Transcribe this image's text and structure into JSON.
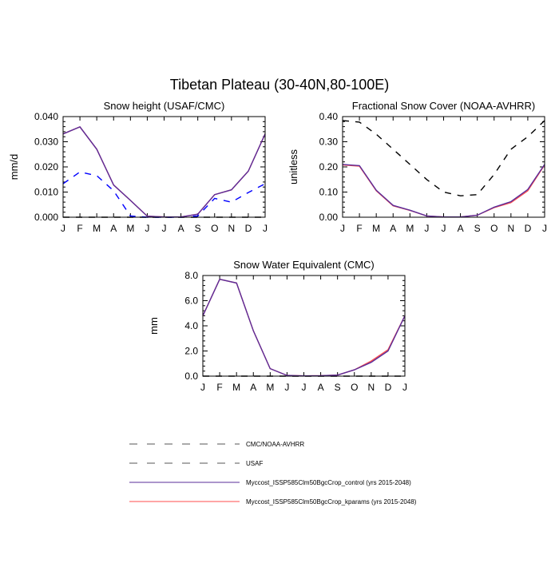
{
  "figure": {
    "title": "Tibetan Plateau (30-40N,80-100E)"
  },
  "months": [
    "J",
    "F",
    "M",
    "A",
    "M",
    "J",
    "J",
    "A",
    "S",
    "O",
    "N",
    "D",
    "J"
  ],
  "colors": {
    "obs1": "#000000",
    "obs2": "#0000ff",
    "control": "#5a2d9a",
    "kparams": "#ff4d4d"
  },
  "legend": [
    {
      "label": "CMC/NOAA-AVHRR",
      "color": "#000000",
      "dash": "8,8"
    },
    {
      "label": "USAF",
      "color": "#0000ff",
      "dash": "8,8"
    },
    {
      "label": "Myccost_ISSP585Clm50BgcCrop_control (yrs 2015-2048)",
      "color": "#5a2d9a",
      "dash": ""
    },
    {
      "label": "Myccost_ISSP585Clm50BgcCrop_kparams (yrs 2015-2048)",
      "color": "#ff4d4d",
      "dash": ""
    }
  ],
  "chart_data": [
    {
      "id": "snow_height",
      "type": "line",
      "title": "Snow height (USAF/CMC)",
      "xlabel": "",
      "ylabel": "mm/d",
      "ylim": [
        0,
        0.04
      ],
      "yticks": [
        "0.000",
        "0.010",
        "0.020",
        "0.030",
        "0.040"
      ],
      "ytick_values": [
        0,
        0.01,
        0.02,
        0.03,
        0.04
      ],
      "series": [
        {
          "key": "obs1",
          "dash": "8,8",
          "values": [
            0,
            0,
            0,
            0,
            0,
            0,
            0,
            0,
            0,
            0,
            0,
            0,
            0
          ]
        },
        {
          "key": "obs2",
          "dash": "8,8",
          "values": [
            0.0133,
            0.018,
            0.0165,
            0.0105,
            0.0005,
            0,
            0,
            0,
            0.0005,
            0.0075,
            0.006,
            0.0098,
            0.0133
          ]
        },
        {
          "key": "kparams",
          "dash": "",
          "values": [
            0.0331,
            0.0359,
            0.027,
            0.0128,
            0.0067,
            0.0004,
            0.0001,
            0.0001,
            0.0012,
            0.009,
            0.0109,
            0.0183,
            0.0331
          ]
        },
        {
          "key": "control",
          "dash": "",
          "values": [
            0.0331,
            0.0359,
            0.027,
            0.0128,
            0.0067,
            0.0004,
            0.0001,
            0.0001,
            0.0012,
            0.009,
            0.0109,
            0.0183,
            0.0331
          ]
        }
      ]
    },
    {
      "id": "fractional_snow_cover",
      "type": "line",
      "title": "Fractional Snow Cover (NOAA-AVHRR)",
      "xlabel": "",
      "ylabel": "unitless",
      "ylim": [
        0,
        0.4
      ],
      "yticks": [
        "0.00",
        "0.10",
        "0.20",
        "0.30",
        "0.40"
      ],
      "ytick_values": [
        0,
        0.1,
        0.2,
        0.3,
        0.4
      ],
      "series": [
        {
          "key": "obs1",
          "dash": "8,8",
          "values": [
            0.384,
            0.378,
            0.33,
            0.27,
            0.21,
            0.15,
            0.1,
            0.085,
            0.09,
            0.17,
            0.27,
            0.32,
            0.384
          ]
        },
        {
          "key": "kparams",
          "dash": "",
          "values": [
            0.208,
            0.203,
            0.105,
            0.045,
            0.027,
            0.005,
            0.001,
            0.001,
            0.008,
            0.038,
            0.058,
            0.105,
            0.208
          ]
        },
        {
          "key": "control",
          "dash": "",
          "values": [
            0.21,
            0.205,
            0.107,
            0.047,
            0.028,
            0.005,
            0.001,
            0.001,
            0.008,
            0.04,
            0.062,
            0.11,
            0.21
          ]
        }
      ]
    },
    {
      "id": "snow_water_equivalent",
      "type": "line",
      "title": "Snow Water Equivalent (CMC)",
      "xlabel": "",
      "ylabel": "mm",
      "ylim": [
        0,
        8
      ],
      "yticks": [
        "0.0",
        "2.0",
        "4.0",
        "6.0",
        "8.0"
      ],
      "ytick_values": [
        0,
        2,
        4,
        6,
        8
      ],
      "series": [
        {
          "key": "obs1",
          "dash": "8,8",
          "values": [
            0,
            0,
            0,
            0,
            0,
            0,
            0,
            0,
            0,
            0,
            0,
            0,
            0
          ]
        },
        {
          "key": "kparams",
          "dash": "",
          "values": [
            4.8,
            7.7,
            7.4,
            3.6,
            0.6,
            0.06,
            0.02,
            0.03,
            0.08,
            0.5,
            1.2,
            2.1,
            4.8
          ]
        },
        {
          "key": "control",
          "dash": "",
          "values": [
            4.8,
            7.7,
            7.4,
            3.6,
            0.6,
            0.06,
            0.02,
            0.03,
            0.08,
            0.5,
            1.1,
            2.0,
            4.8
          ]
        }
      ]
    }
  ]
}
